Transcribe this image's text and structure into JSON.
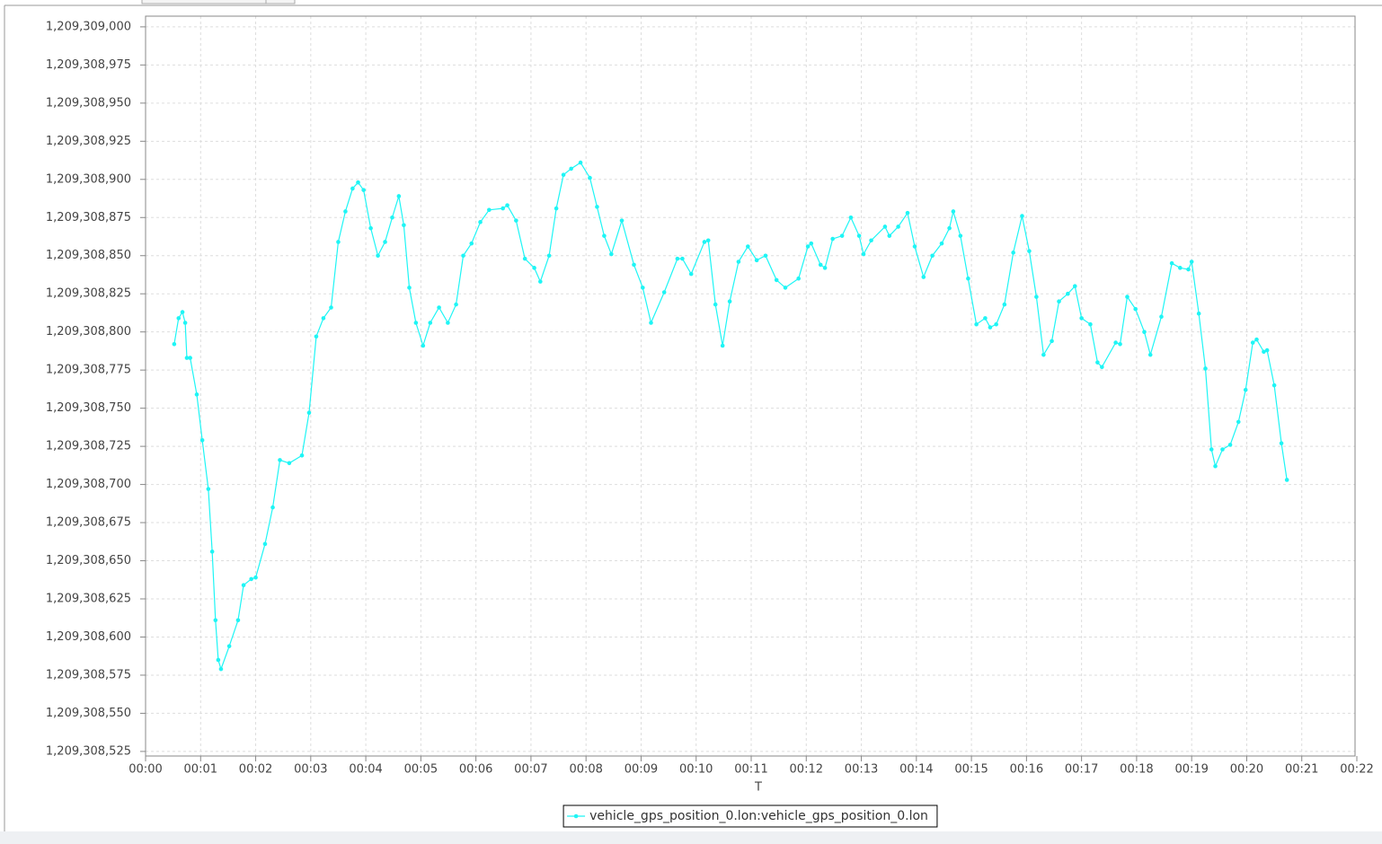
{
  "chart_data": {
    "type": "line",
    "x_label": "T",
    "x": [
      0.52,
      0.6,
      0.67,
      0.72,
      0.75,
      0.81,
      0.93,
      1.03,
      1.14,
      1.21,
      1.27,
      1.32,
      1.37,
      1.52,
      1.68,
      1.78,
      1.92,
      2.0,
      2.17,
      2.31,
      2.44,
      2.61,
      2.84,
      2.97,
      3.1,
      3.23,
      3.37,
      3.5,
      3.63,
      3.76,
      3.86,
      3.96,
      4.09,
      4.22,
      4.35,
      4.48,
      4.6,
      4.69,
      4.79,
      4.91,
      5.04,
      5.17,
      5.33,
      5.49,
      5.64,
      5.77,
      5.92,
      6.08,
      6.24,
      6.49,
      6.57,
      6.73,
      6.89,
      7.06,
      7.17,
      7.33,
      7.46,
      7.59,
      7.73,
      7.9,
      8.07,
      8.2,
      8.33,
      8.46,
      8.65,
      8.87,
      9.03,
      9.18,
      9.42,
      9.66,
      9.75,
      9.91,
      10.15,
      10.22,
      10.35,
      10.48,
      10.61,
      10.77,
      10.94,
      11.1,
      11.26,
      11.46,
      11.62,
      11.86,
      12.03,
      12.09,
      12.26,
      12.34,
      12.48,
      12.65,
      12.81,
      12.96,
      13.04,
      13.18,
      13.43,
      13.51,
      13.67,
      13.84,
      13.97,
      14.13,
      14.29,
      14.46,
      14.6,
      14.67,
      14.8,
      14.94,
      15.09,
      15.25,
      15.34,
      15.45,
      15.6,
      15.76,
      15.92,
      16.05,
      16.18,
      16.31,
      16.46,
      16.59,
      16.75,
      16.88,
      17.0,
      17.16,
      17.29,
      17.37,
      17.62,
      17.7,
      17.83,
      17.98,
      18.14,
      18.25,
      18.45,
      18.64,
      18.79,
      18.94,
      19.0,
      19.13,
      19.25,
      19.36,
      19.43,
      19.56,
      19.7,
      19.85,
      19.98,
      20.11,
      20.18,
      20.31,
      20.37,
      20.5,
      20.63,
      20.73
    ],
    "series": [
      {
        "name": "vehicle_gps_position_0.lon:vehicle_gps_position_0.lon",
        "color": "#1ef5f5",
        "values": [
          1209308792,
          1209308809,
          1209308813,
          1209308806,
          1209308783,
          1209308783,
          1209308759,
          1209308729,
          1209308697,
          1209308656,
          1209308611,
          1209308585,
          1209308579,
          1209308594,
          1209308611,
          1209308634,
          1209308638,
          1209308639,
          1209308661,
          1209308685,
          1209308716,
          1209308714,
          1209308719,
          1209308747,
          1209308797,
          1209308809,
          1209308816,
          1209308859,
          1209308879,
          1209308894,
          1209308898,
          1209308893,
          1209308868,
          1209308850,
          1209308859,
          1209308875,
          1209308889,
          1209308870,
          1209308829,
          1209308806,
          1209308791,
          1209308806,
          1209308816,
          1209308806,
          1209308818,
          1209308850,
          1209308858,
          1209308872,
          1209308880,
          1209308881,
          1209308883,
          1209308873,
          1209308848,
          1209308842,
          1209308833,
          1209308850,
          1209308881,
          1209308903,
          1209308907,
          1209308911,
          1209308901,
          1209308882,
          1209308863,
          1209308851,
          1209308873,
          1209308844,
          1209308829,
          1209308806,
          1209308826,
          1209308848,
          1209308848,
          1209308838,
          1209308859,
          1209308860,
          1209308818,
          1209308791,
          1209308820,
          1209308846,
          1209308856,
          1209308847,
          1209308850,
          1209308834,
          1209308829,
          1209308835,
          1209308856,
          1209308858,
          1209308844,
          1209308842,
          1209308861,
          1209308863,
          1209308875,
          1209308863,
          1209308851,
          1209308860,
          1209308869,
          1209308863,
          1209308869,
          1209308878,
          1209308856,
          1209308836,
          1209308850,
          1209308858,
          1209308868,
          1209308879,
          1209308863,
          1209308835,
          1209308805,
          1209308809,
          1209308803,
          1209308805,
          1209308818,
          1209308852,
          1209308876,
          1209308853,
          1209308823,
          1209308785,
          1209308794,
          1209308820,
          1209308825,
          1209308830,
          1209308809,
          1209308805,
          1209308780,
          1209308777,
          1209308793,
          1209308792,
          1209308823,
          1209308815,
          1209308800,
          1209308785,
          1209308810,
          1209308845,
          1209308842,
          1209308841,
          1209308846,
          1209308812,
          1209308776,
          1209308723,
          1209308712,
          1209308723,
          1209308726,
          1209308741,
          1209308762,
          1209308793,
          1209308795,
          1209308787,
          1209308788,
          1209308765,
          1209308727,
          1209308703
        ]
      }
    ],
    "xlim": [
      0,
      22
    ],
    "ylim": [
      1209308522,
      1209309007
    ],
    "xticks": [
      {
        "value": 0,
        "label": "00:00"
      },
      {
        "value": 1,
        "label": "00:01"
      },
      {
        "value": 2,
        "label": "00:02"
      },
      {
        "value": 3,
        "label": "00:03"
      },
      {
        "value": 4,
        "label": "00:04"
      },
      {
        "value": 5,
        "label": "00:05"
      },
      {
        "value": 6,
        "label": "00:06"
      },
      {
        "value": 7,
        "label": "00:07"
      },
      {
        "value": 8,
        "label": "00:08"
      },
      {
        "value": 9,
        "label": "00:09"
      },
      {
        "value": 10,
        "label": "00:10"
      },
      {
        "value": 11,
        "label": "00:11"
      },
      {
        "value": 12,
        "label": "00:12"
      },
      {
        "value": 13,
        "label": "00:13"
      },
      {
        "value": 14,
        "label": "00:14"
      },
      {
        "value": 15,
        "label": "00:15"
      },
      {
        "value": 16,
        "label": "00:16"
      },
      {
        "value": 17,
        "label": "00:17"
      },
      {
        "value": 18,
        "label": "00:18"
      },
      {
        "value": 19,
        "label": "00:19"
      },
      {
        "value": 20,
        "label": "00:20"
      },
      {
        "value": 21,
        "label": "00:21"
      },
      {
        "value": 22,
        "label": "00:22"
      }
    ],
    "yticks": [
      {
        "value": 1209308525,
        "label": "1,209,308,525"
      },
      {
        "value": 1209308550,
        "label": "1,209,308,550"
      },
      {
        "value": 1209308575,
        "label": "1,209,308,575"
      },
      {
        "value": 1209308600,
        "label": "1,209,308,600"
      },
      {
        "value": 1209308625,
        "label": "1,209,308,625"
      },
      {
        "value": 1209308650,
        "label": "1,209,308,650"
      },
      {
        "value": 1209308675,
        "label": "1,209,308,675"
      },
      {
        "value": 1209308700,
        "label": "1,209,308,700"
      },
      {
        "value": 1209308725,
        "label": "1,209,308,725"
      },
      {
        "value": 1209308750,
        "label": "1,209,308,750"
      },
      {
        "value": 1209308775,
        "label": "1,209,308,775"
      },
      {
        "value": 1209308800,
        "label": "1,209,308,800"
      },
      {
        "value": 1209308825,
        "label": "1,209,308,825"
      },
      {
        "value": 1209308850,
        "label": "1,209,308,850"
      },
      {
        "value": 1209308875,
        "label": "1,209,308,875"
      },
      {
        "value": 1209308900,
        "label": "1,209,308,900"
      },
      {
        "value": 1209308925,
        "label": "1,209,308,925"
      },
      {
        "value": 1209308950,
        "label": "1,209,308,950"
      },
      {
        "value": 1209308975,
        "label": "1,209,308,975"
      },
      {
        "value": 1209309000,
        "label": "1,209,309,000"
      }
    ],
    "grid": true,
    "legend": "bottom"
  }
}
